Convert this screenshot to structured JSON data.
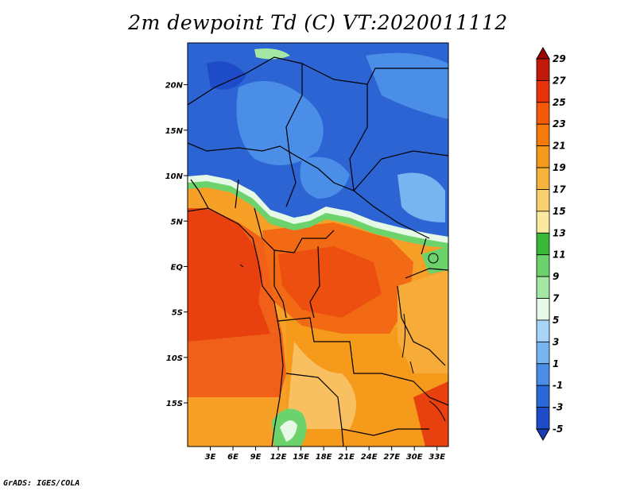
{
  "title": "2m dewpoint Td (C) VT:2020011112",
  "footer": "GrADS: IGES/COLA",
  "map": {
    "lat_labels": [
      "20N",
      "15N",
      "10N",
      "5N",
      "EQ",
      "5S",
      "10S",
      "15S"
    ],
    "lat_values": [
      20,
      15,
      10,
      5,
      0,
      -5,
      -10,
      -15
    ],
    "lon_labels": [
      "3E",
      "6E",
      "9E",
      "12E",
      "15E",
      "18E",
      "21E",
      "24E",
      "27E",
      "30E",
      "33E"
    ],
    "lon_values": [
      3,
      6,
      9,
      12,
      15,
      18,
      21,
      24,
      27,
      30,
      33
    ],
    "lon_range": [
      0,
      34.5
    ],
    "lat_range": [
      -19.8,
      24.6
    ]
  },
  "colorbar": {
    "labels": [
      "29",
      "27",
      "25",
      "23",
      "21",
      "19",
      "17",
      "15",
      "13",
      "11",
      "9",
      "7",
      "5",
      "3",
      "1",
      "-1",
      "-3",
      "-5"
    ],
    "colors": [
      "#a00000",
      "#c21a0a",
      "#e8330a",
      "#f55a0a",
      "#f57a0a",
      "#f59a1a",
      "#f7b43c",
      "#f8d070",
      "#fbe9a0",
      "#38b838",
      "#6cd26c",
      "#a4e6a4",
      "#e6f8e6",
      "#a8d4f8",
      "#78b4f0",
      "#4a8ee8",
      "#2868d8",
      "#1e4cc8",
      "#1c3cb4"
    ]
  }
}
